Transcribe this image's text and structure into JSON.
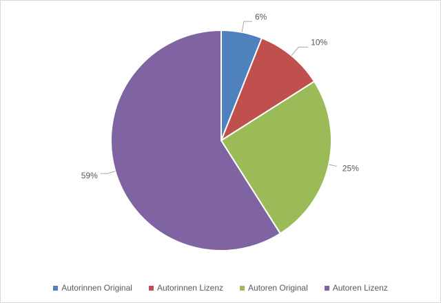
{
  "chart_data": {
    "type": "pie",
    "title": "",
    "categories": [
      "Autorinnen Original",
      "Autorinnen Lizenz",
      "Autoren Original",
      "Autoren Lizenz"
    ],
    "values": [
      6,
      10,
      25,
      59
    ],
    "value_labels": [
      "6%",
      "10%",
      "25%",
      "59%"
    ],
    "colors": [
      "#4f81bd",
      "#c0504d",
      "#9bbb59",
      "#8064a2"
    ],
    "legend_position": "bottom",
    "start_angle": "12 o'clock, clockwise"
  }
}
